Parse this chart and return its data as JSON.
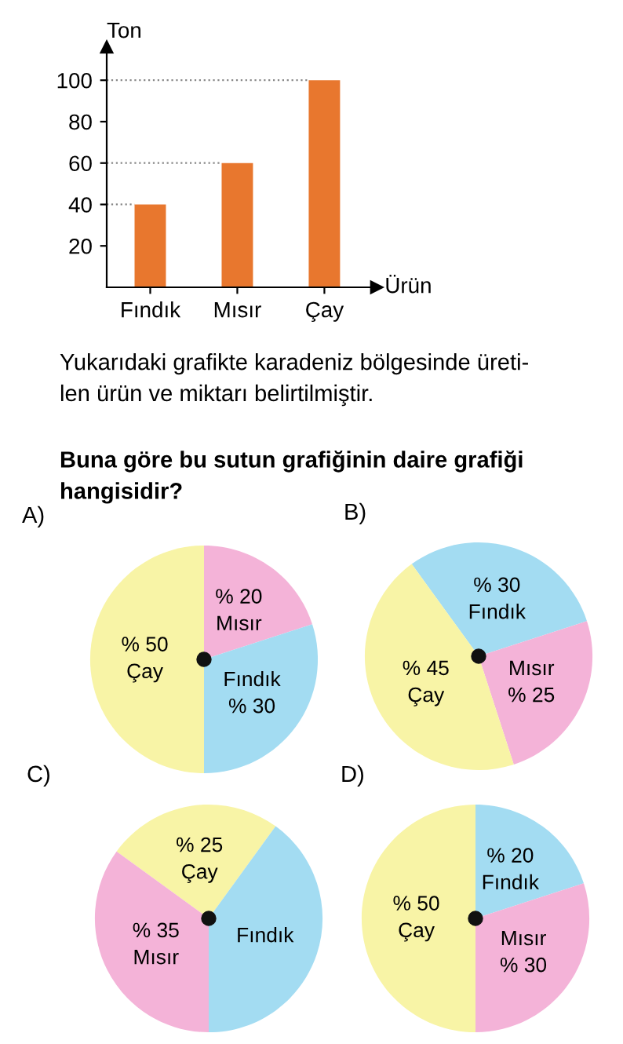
{
  "chart_data": [
    {
      "type": "bar",
      "categories": [
        "Fındık",
        "Mısır",
        "Çay"
      ],
      "values": [
        40,
        60,
        100
      ],
      "color": "#e8772e",
      "ylabel": "Ton",
      "xlabel": "Ürün",
      "ylim": [
        0,
        116
      ],
      "yticks": [
        20,
        40,
        60,
        80,
        100
      ],
      "ref_lines": [
        {
          "axis": "y",
          "value": 40,
          "line_style": "dotted"
        },
        {
          "axis": "y",
          "value": 60,
          "line_style": "dotted"
        },
        {
          "axis": "y",
          "value": 100,
          "line_style": "dotted"
        }
      ],
      "annotations": [
        "Yukarıdaki grafikte karadeniz bölgesinde üreti-\nlen ürün ve miktarı belirtilmiştir.",
        "Buna göre bu sutun grafiğinin daire grafiği\nhangisidir?"
      ]
    },
    {
      "type": "pie",
      "title": "A)",
      "categories": [
        "Mısır",
        "Fındık",
        "Çay"
      ],
      "values": [
        20,
        30,
        50
      ],
      "colors": [
        "#f4b3d8",
        "#a3dcf2",
        "#f8f4a6"
      ],
      "value_labels": [
        "% 20",
        "% 30",
        "% 50"
      ]
    },
    {
      "type": "pie",
      "title": "B)",
      "categories": [
        "Fındık",
        "Mısır",
        "Çay"
      ],
      "values": [
        30,
        25,
        45
      ],
      "colors": [
        "#a3dcf2",
        "#f4b3d8",
        "#f8f4a6"
      ],
      "value_labels": [
        "% 30",
        "% 25",
        "% 45"
      ]
    },
    {
      "type": "pie",
      "title": "C)",
      "categories": [
        "Çay",
        "Fındık",
        "Mısır"
      ],
      "values": [
        25,
        40,
        35
      ],
      "colors": [
        "#f8f4a6",
        "#a3dcf2",
        "#f4b3d8"
      ],
      "value_labels": [
        "% 25",
        null,
        "% 35"
      ]
    },
    {
      "type": "pie",
      "title": "D)",
      "categories": [
        "Fındık",
        "Mısır",
        "Çay"
      ],
      "values": [
        20,
        30,
        50
      ],
      "colors": [
        "#a3dcf2",
        "#f4b3d8",
        "#f8f4a6"
      ],
      "value_labels": [
        "% 20",
        "% 30",
        "% 50"
      ]
    }
  ]
}
